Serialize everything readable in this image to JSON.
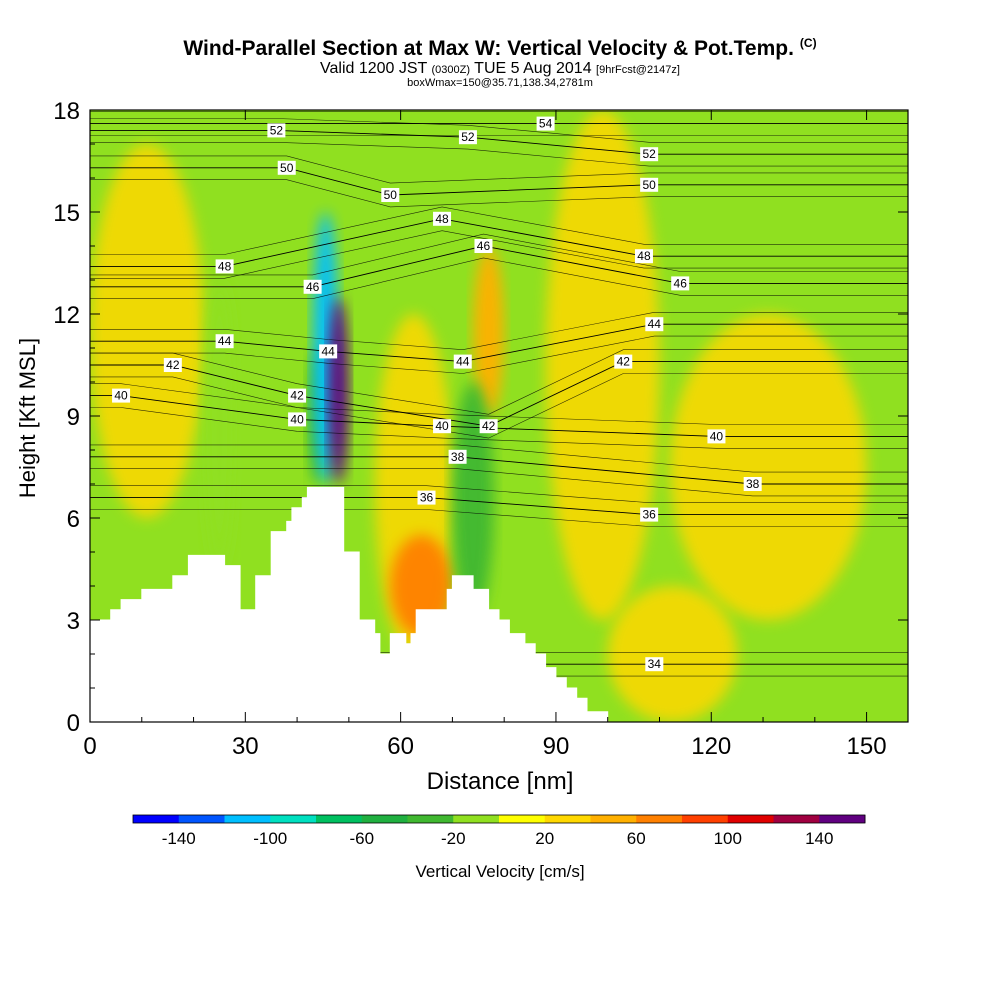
{
  "title": "Wind-Parallel Section at Max W: Vertical Velocity & Pot.Temp.",
  "title_tag": "(C)",
  "subtitle_main": "Valid 1200 JST",
  "subtitle_utc": "(0300Z)",
  "subtitle_date": "TUE 5 Aug 2014",
  "subtitle_fcst": "[9hrFcst@2147z]",
  "subtitle2": "boxWmax=150@35.71,138.34,2781m",
  "colorbar": {
    "label": "Vertical Velocity [cm/s]",
    "tick_labels": [
      "-140",
      "-100",
      "-60",
      "-20",
      "20",
      "60",
      "100",
      "140"
    ],
    "bins": [
      -160,
      -140,
      -120,
      -100,
      -80,
      -60,
      -40,
      -20,
      0,
      20,
      40,
      60,
      80,
      100,
      120,
      140,
      160
    ],
    "colors": [
      "#0000ff",
      "#0055ff",
      "#00bfff",
      "#00e0c0",
      "#00c060",
      "#20b040",
      "#40b830",
      "#90e020",
      "#ffff00",
      "#ffd800",
      "#ffb000",
      "#ff8000",
      "#ff4000",
      "#e00000",
      "#a00040",
      "#600080"
    ]
  },
  "chart_data": {
    "type": "heatmap",
    "title": "Wind-Parallel Section at Max W: Vertical Velocity & Pot.Temp.",
    "xlabel": "Distance [nm]",
    "ylabel": "Height [Kft MSL]",
    "xlim": [
      0,
      158
    ],
    "ylim": [
      0,
      18
    ],
    "x_ticks": [
      0,
      30,
      60,
      90,
      120,
      150
    ],
    "y_ticks": [
      0,
      3,
      6,
      9,
      12,
      15,
      18
    ],
    "fill_variable": "Vertical Velocity [cm/s]",
    "contour_variable": "Potential Temperature [C]",
    "terrain": {
      "x": [
        0,
        4,
        4,
        6,
        6,
        10,
        10,
        16,
        16,
        19,
        19,
        26,
        26,
        29,
        29,
        32,
        32,
        35,
        35,
        38,
        38,
        39,
        39,
        41,
        41,
        42,
        42,
        49,
        49,
        52,
        52,
        55,
        55,
        56,
        56,
        58,
        58,
        61,
        61,
        62,
        62,
        63,
        63,
        69,
        69,
        70,
        70,
        74,
        74,
        77,
        77,
        79,
        79,
        81,
        81,
        84,
        84,
        86,
        86,
        88,
        88,
        90,
        90,
        92,
        92,
        94,
        94,
        96,
        96,
        100,
        100,
        101,
        101,
        158
      ],
      "y": [
        3.0,
        3.0,
        3.3,
        3.3,
        3.6,
        3.6,
        3.9,
        3.9,
        4.3,
        4.3,
        4.9,
        4.9,
        4.6,
        4.6,
        3.3,
        3.3,
        4.3,
        4.3,
        5.6,
        5.6,
        5.9,
        5.9,
        6.3,
        6.3,
        6.6,
        6.6,
        6.9,
        6.9,
        5.0,
        5.0,
        3.0,
        3.0,
        2.6,
        2.6,
        2.0,
        2.0,
        2.6,
        2.6,
        2.3,
        2.3,
        2.6,
        2.6,
        3.3,
        3.3,
        3.9,
        3.9,
        4.3,
        4.3,
        3.9,
        3.9,
        3.3,
        3.3,
        3.0,
        3.0,
        2.6,
        2.6,
        2.3,
        2.3,
        2.0,
        2.0,
        1.6,
        1.6,
        1.3,
        1.3,
        1.0,
        1.0,
        0.7,
        0.7,
        0.3,
        0.3,
        0.0,
        0.0
      ]
    },
    "velocity_features": [
      {
        "value": 20,
        "x": [
          0,
          158
        ],
        "y": [
          0,
          18
        ]
      },
      {
        "value": -20,
        "x": [
          22,
          28
        ],
        "y": [
          4.5,
          13.0
        ]
      },
      {
        "value": -40,
        "x": [
          42,
          46
        ],
        "y": [
          7.0,
          11.0
        ]
      },
      {
        "value": -120,
        "x": [
          43,
          48
        ],
        "y": [
          7.0,
          15.0
        ]
      },
      {
        "value": 140,
        "x": [
          46,
          50
        ],
        "y": [
          7.0,
          12.5
        ]
      },
      {
        "value": 60,
        "x": [
          58,
          70
        ],
        "y": [
          2.5,
          5.5
        ]
      },
      {
        "value": 40,
        "x": [
          74,
          80
        ],
        "y": [
          9.0,
          14.0
        ]
      },
      {
        "value": -40,
        "x": [
          70,
          78
        ],
        "y": [
          3.0,
          10.0
        ]
      }
    ],
    "theta_contours": [
      {
        "label": "34",
        "x": 109,
        "y": 1.7
      },
      {
        "label": "36",
        "x": 65,
        "y": 6.6
      },
      {
        "label": "36",
        "x": 108,
        "y": 6.1
      },
      {
        "label": "38",
        "x": 71,
        "y": 7.8
      },
      {
        "label": "38",
        "x": 128,
        "y": 7.0
      },
      {
        "label": "40",
        "x": 6,
        "y": 9.6
      },
      {
        "label": "40",
        "x": 40,
        "y": 8.9
      },
      {
        "label": "40",
        "x": 68,
        "y": 8.7
      },
      {
        "label": "40",
        "x": 121,
        "y": 8.4
      },
      {
        "label": "42",
        "x": 16,
        "y": 10.5
      },
      {
        "label": "42",
        "x": 40,
        "y": 9.6
      },
      {
        "label": "42",
        "x": 77,
        "y": 8.7
      },
      {
        "label": "42",
        "x": 103,
        "y": 10.6
      },
      {
        "label": "44",
        "x": 26,
        "y": 11.2
      },
      {
        "label": "44",
        "x": 46,
        "y": 10.9
      },
      {
        "label": "44",
        "x": 72,
        "y": 10.6
      },
      {
        "label": "44",
        "x": 109,
        "y": 11.7
      },
      {
        "label": "46",
        "x": 43,
        "y": 12.8
      },
      {
        "label": "46",
        "x": 76,
        "y": 14.0
      },
      {
        "label": "46",
        "x": 114,
        "y": 12.9
      },
      {
        "label": "48",
        "x": 26,
        "y": 13.4
      },
      {
        "label": "48",
        "x": 68,
        "y": 14.8
      },
      {
        "label": "48",
        "x": 107,
        "y": 13.7
      },
      {
        "label": "50",
        "x": 38,
        "y": 16.3
      },
      {
        "label": "50",
        "x": 58,
        "y": 15.5
      },
      {
        "label": "50",
        "x": 108,
        "y": 15.8
      },
      {
        "label": "52",
        "x": 36,
        "y": 17.4
      },
      {
        "label": "52",
        "x": 73,
        "y": 17.2
      },
      {
        "label": "52",
        "x": 108,
        "y": 16.7
      },
      {
        "label": "54",
        "x": 88,
        "y": 17.6
      }
    ]
  }
}
